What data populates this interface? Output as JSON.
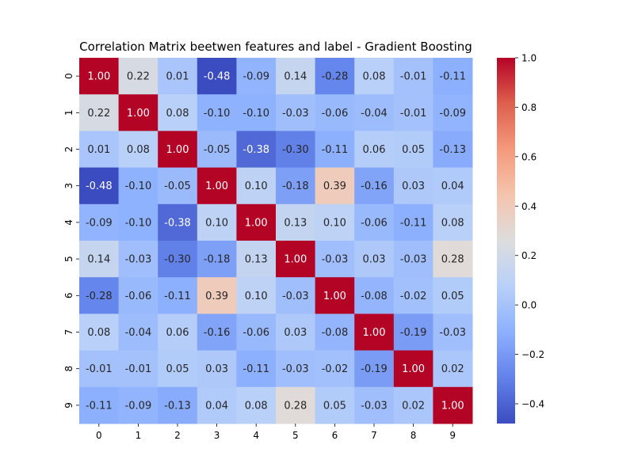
{
  "chart_data": {
    "type": "heatmap",
    "title": "Correlation Matrix beetwen features and label - Gradient Boosting",
    "xlabel": "",
    "ylabel": "",
    "x_labels": [
      "0",
      "1",
      "2",
      "3",
      "4",
      "5",
      "6",
      "7",
      "8",
      "9"
    ],
    "y_labels": [
      "0",
      "1",
      "2",
      "3",
      "4",
      "5",
      "6",
      "7",
      "8",
      "9"
    ],
    "values": [
      [
        1.0,
        0.22,
        0.01,
        -0.48,
        -0.09,
        0.14,
        -0.28,
        0.08,
        -0.01,
        -0.11
      ],
      [
        0.22,
        1.0,
        0.08,
        -0.1,
        -0.1,
        -0.03,
        -0.06,
        -0.04,
        -0.01,
        -0.09
      ],
      [
        0.01,
        0.08,
        1.0,
        -0.05,
        -0.38,
        -0.3,
        -0.11,
        0.06,
        0.05,
        -0.13
      ],
      [
        -0.48,
        -0.1,
        -0.05,
        1.0,
        0.1,
        -0.18,
        0.39,
        -0.16,
        0.03,
        0.04
      ],
      [
        -0.09,
        -0.1,
        -0.38,
        0.1,
        1.0,
        0.13,
        0.1,
        -0.06,
        -0.11,
        0.08
      ],
      [
        0.14,
        -0.03,
        -0.3,
        -0.18,
        0.13,
        1.0,
        -0.03,
        0.03,
        -0.03,
        0.28
      ],
      [
        -0.28,
        -0.06,
        -0.11,
        0.39,
        0.1,
        -0.03,
        1.0,
        -0.08,
        -0.02,
        0.05
      ],
      [
        0.08,
        -0.04,
        0.06,
        -0.16,
        -0.06,
        0.03,
        -0.08,
        1.0,
        -0.19,
        -0.03
      ],
      [
        -0.01,
        -0.01,
        0.05,
        0.03,
        -0.11,
        -0.03,
        -0.02,
        -0.19,
        1.0,
        0.02
      ],
      [
        -0.11,
        -0.09,
        -0.13,
        0.04,
        0.08,
        0.28,
        0.05,
        -0.03,
        0.02,
        1.0
      ]
    ],
    "value_format": "0.00",
    "colormap": "coolwarm",
    "colorbar": {
      "range": [
        -0.48,
        1.0
      ],
      "ticks": [
        -0.4,
        -0.2,
        0.0,
        0.2,
        0.4,
        0.6,
        0.8,
        1.0
      ],
      "tick_labels": [
        "−0.4",
        "−0.2",
        "0.0",
        "0.2",
        "0.4",
        "0.6",
        "0.8",
        "1.0"
      ]
    }
  }
}
